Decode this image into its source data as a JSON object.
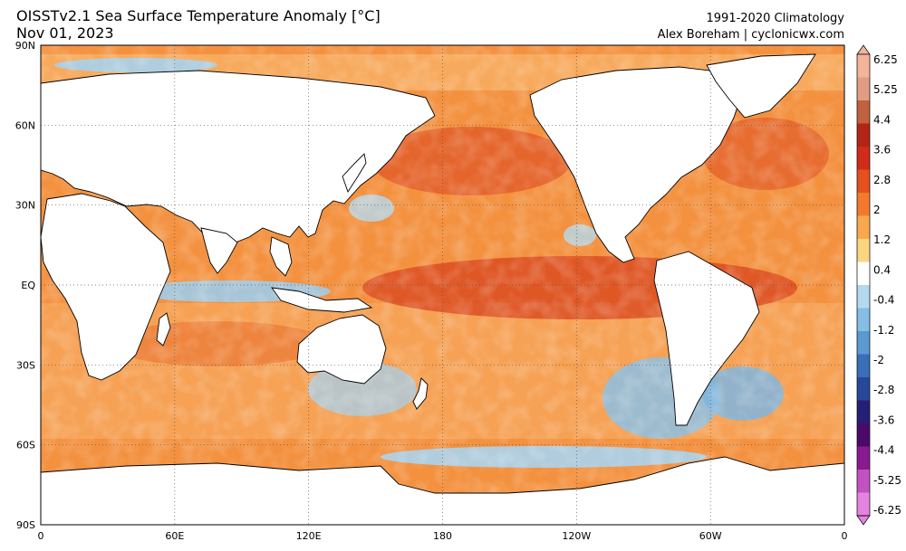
{
  "header": {
    "title": "OISSTv2.1 Sea Surface Temperature Anomaly [°C]",
    "date": "Nov 01, 2023",
    "climatology": "1991-2020 Climatology",
    "credit": "Alex Boreham | cyclonicwx.com"
  },
  "map": {
    "extent": {
      "lon_min": 0,
      "lon_max": 360,
      "lat_min": -90,
      "lat_max": 90
    },
    "lat_ticks": [
      {
        "lat": 90,
        "label": "90N"
      },
      {
        "lat": 60,
        "label": "60N"
      },
      {
        "lat": 30,
        "label": "30N"
      },
      {
        "lat": 0,
        "label": "EQ"
      },
      {
        "lat": -30,
        "label": "30S"
      },
      {
        "lat": -60,
        "label": "60S"
      },
      {
        "lat": -90,
        "label": "90S"
      }
    ],
    "lon_ticks": [
      {
        "lon": 0,
        "label": "0"
      },
      {
        "lon": 60,
        "label": "60E"
      },
      {
        "lon": 120,
        "label": "120E"
      },
      {
        "lon": 180,
        "label": "180"
      },
      {
        "lon": 240,
        "label": "120W"
      },
      {
        "lon": 300,
        "label": "60W"
      },
      {
        "lon": 360,
        "label": "0"
      }
    ],
    "grid": true,
    "warm_color": "#f08a3a",
    "cool_color": "#9ecde8",
    "land_color": "#ffffff"
  },
  "colorbar": {
    "labels": [
      "6.25",
      "5.25",
      "4.4",
      "3.6",
      "2.8",
      "2",
      "1.2",
      "0.4",
      "-0.4",
      "-1.2",
      "-2",
      "-2.8",
      "-3.6",
      "-4.4",
      "-5.25",
      "-6.25"
    ],
    "colors": [
      "#f2b49a",
      "#e39c84",
      "#c06240",
      "#b22518",
      "#cf2d1a",
      "#e5501f",
      "#f37a2c",
      "#f8a84f",
      "#fbd57f",
      "#ffffff",
      "#b4d9ef",
      "#86bde3",
      "#5a9ad1",
      "#3a6eb6",
      "#27479a",
      "#251f75",
      "#4b0a6a",
      "#8a1a90",
      "#c252c2",
      "#e483e0"
    ]
  }
}
